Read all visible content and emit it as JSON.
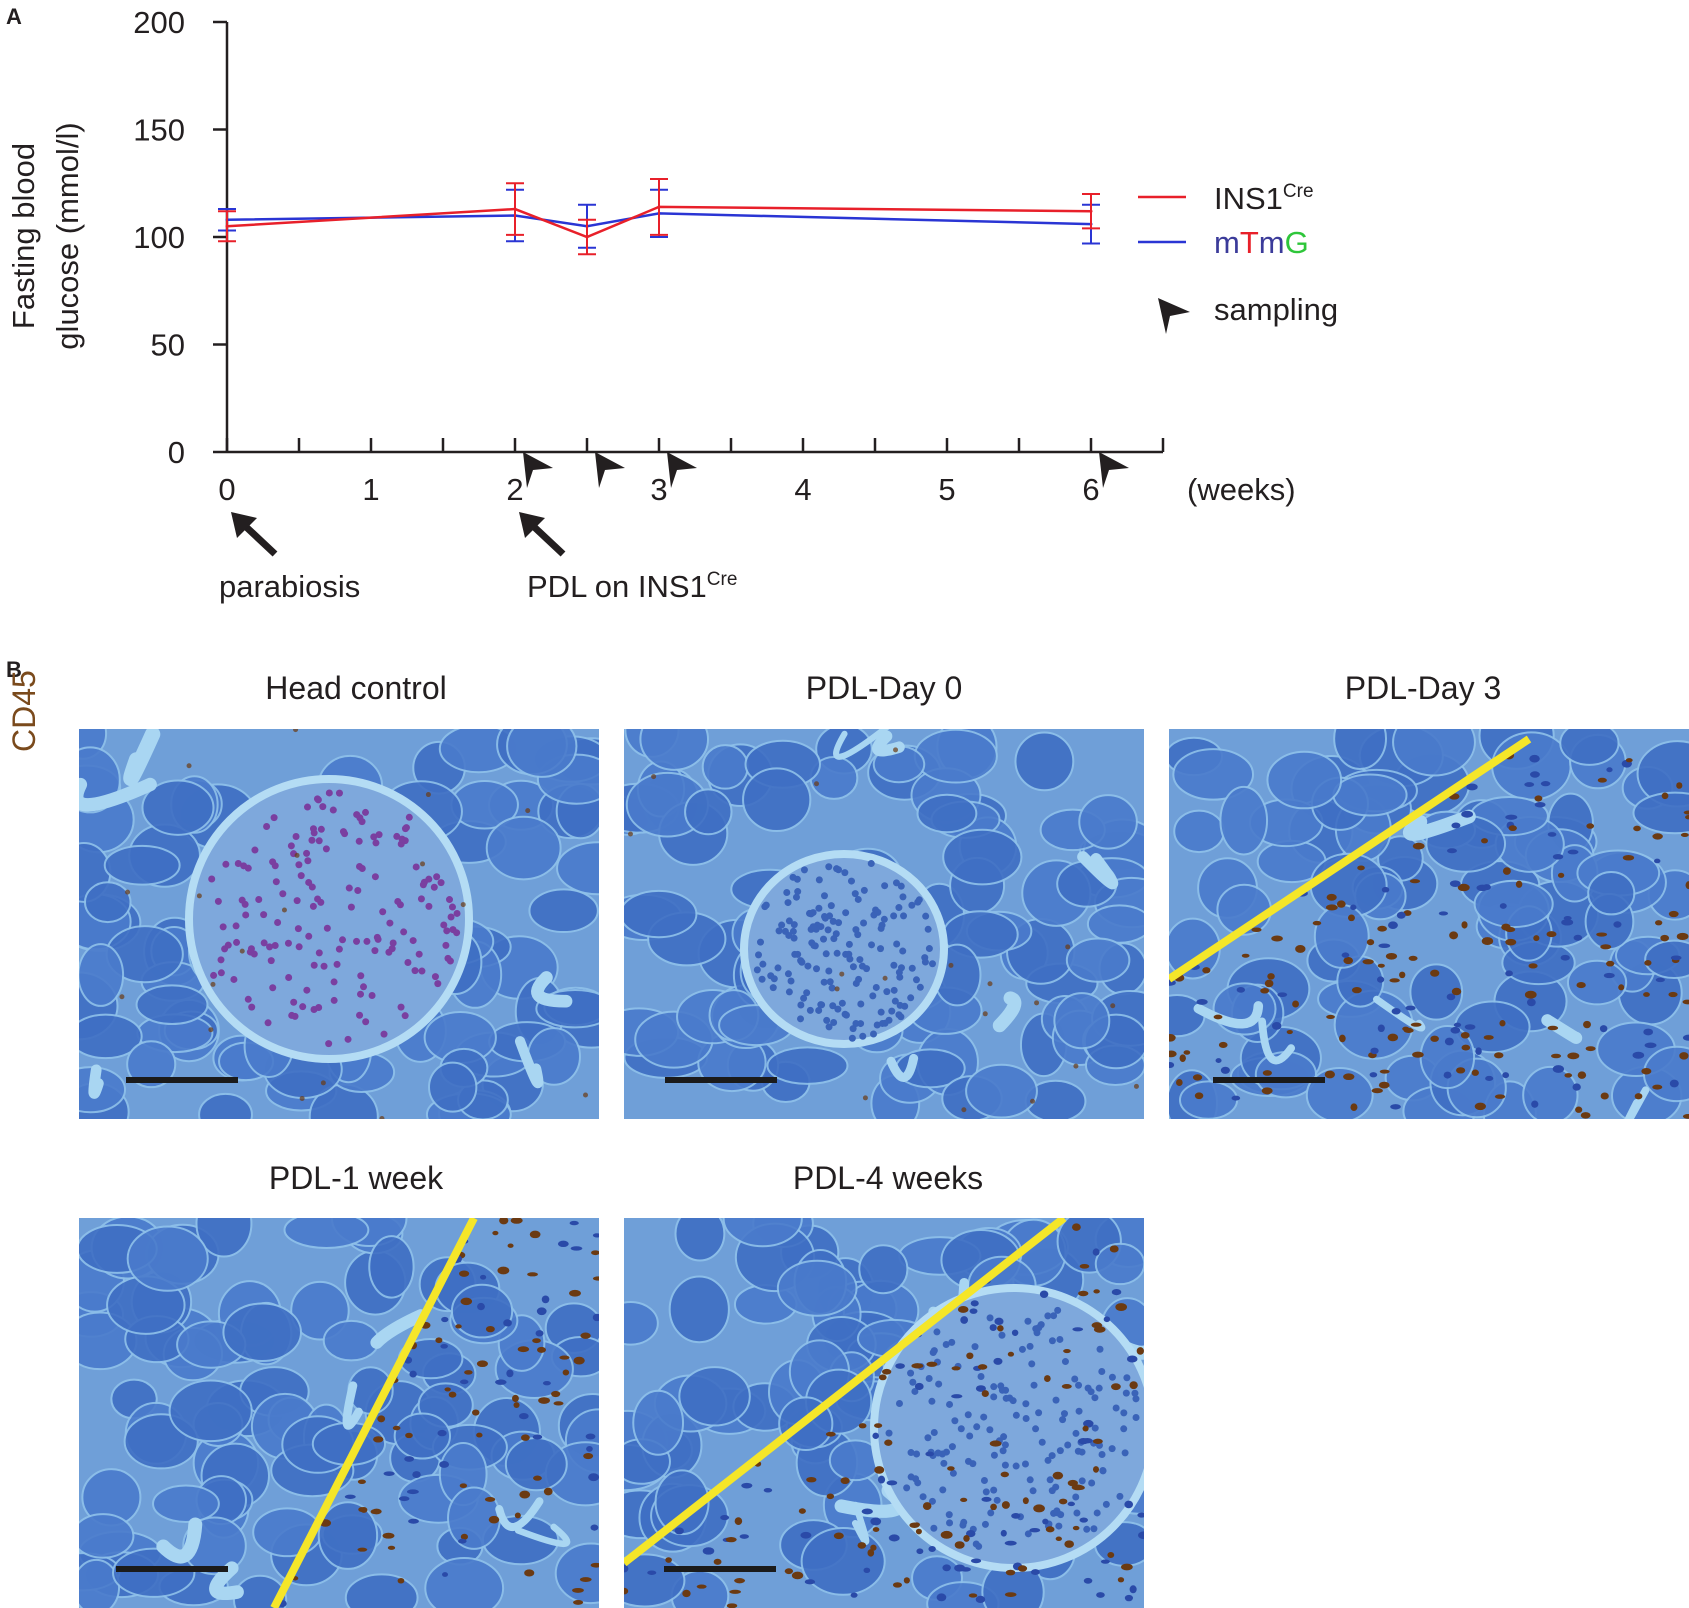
{
  "panel_a_label": "A",
  "panel_b_label": "B",
  "chart_data": {
    "type": "line",
    "ylabel_line1": "Fasting blood",
    "ylabel_line2": "glucose (mmol/l)",
    "xunit": "(weeks)",
    "ylim": [
      0,
      200
    ],
    "xlim": [
      0,
      6.5
    ],
    "yticks": [
      0,
      50,
      100,
      150,
      200
    ],
    "xticks": [
      0,
      1,
      2,
      3,
      4,
      5,
      6
    ],
    "minor_xticks": [
      0.5,
      1.5,
      2.5,
      3.5,
      4.5,
      5.5,
      6.5
    ],
    "series": [
      {
        "name": "INS1",
        "name_sup": "Cre",
        "color": "#e8202a",
        "x": [
          0,
          2,
          2.5,
          3,
          6
        ],
        "y": [
          105,
          113,
          100,
          114,
          112
        ],
        "err": [
          7,
          12,
          8,
          13,
          8
        ]
      },
      {
        "name_parts": [
          {
            "text": "m",
            "color": "#3b3b9a"
          },
          {
            "text": "T",
            "color": "#e8202a"
          },
          {
            "text": "m",
            "color": "#3b3b9a"
          },
          {
            "text": "G",
            "color": "#2ec63a"
          }
        ],
        "color": "#2a35d4",
        "x": [
          0,
          2,
          2.5,
          3,
          6
        ],
        "y": [
          108,
          110,
          105,
          111,
          106
        ],
        "err": [
          5,
          12,
          10,
          11,
          9
        ]
      }
    ],
    "sampling_label": "sampling",
    "sampling_x": [
      2,
      2.5,
      3,
      6
    ],
    "events": [
      {
        "x": 0,
        "label": "parabiosis",
        "sup": ""
      },
      {
        "x": 2,
        "label": "PDL on INS1",
        "sup": "Cre"
      }
    ]
  },
  "panel_b": {
    "stain_label": "CD45",
    "images": [
      {
        "title": "Head control",
        "tissue": "islet",
        "infiltrate": false
      },
      {
        "title": "PDL-Day 0",
        "tissue": "islet",
        "infiltrate": false
      },
      {
        "title": "PDL-Day 3",
        "tissue": "acinar",
        "infiltrate": true
      },
      {
        "title": "PDL-1 week",
        "tissue": "acinar",
        "infiltrate": true
      },
      {
        "title": "PDL-4 weeks",
        "tissue": "islet",
        "infiltrate": true
      }
    ],
    "divider_color": "#f5e629",
    "cd45_color": "#6b3a12"
  }
}
